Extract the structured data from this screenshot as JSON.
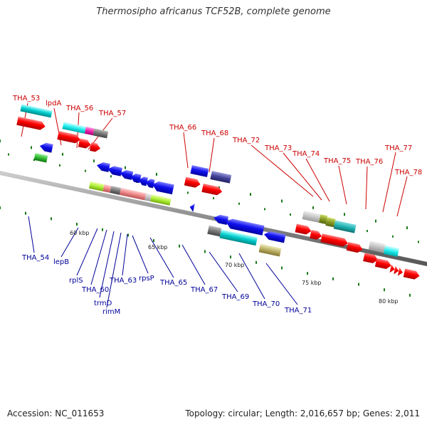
{
  "title": "Thermosipho africanus TCF52B, complete genome",
  "footer": {
    "accession": "Accession: NC_011653",
    "summary": "Topology: circular; Length: 2,016,657 bp; Genes: 2,011"
  },
  "colors": {
    "forward_label": "#cc0000",
    "reverse_label": "#000099",
    "forward_gene": "#ff0000",
    "reverse_gene": "#0000ee",
    "backbone": "#8c8c8c",
    "tick": "#1a7a1a"
  },
  "scale_labels": [
    "60 kbp",
    "65 kbp",
    "70 kbp",
    "75 kbp",
    "80 kbp"
  ],
  "forward_labels": [
    "THA_53",
    "lpdA",
    "THA_56",
    "THA_57",
    "THA_66",
    "THA_68",
    "THA_72",
    "THA_73",
    "THA_74",
    "THA_75",
    "THA_76",
    "THA_77",
    "THA_78"
  ],
  "reverse_labels": [
    "THA_54",
    "lepB",
    "rplS",
    "THA_60",
    "trmD",
    "rimM",
    "THA_63",
    "rpsP",
    "THA_65",
    "THA_67",
    "THA_69",
    "THA_70",
    "THA_71"
  ]
}
